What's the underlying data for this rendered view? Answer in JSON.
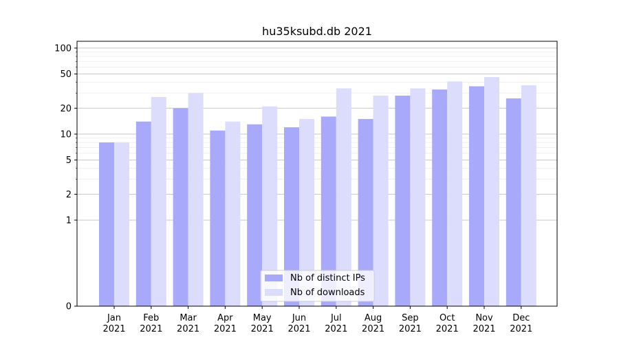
{
  "chart_data": {
    "type": "bar",
    "title": "hu35ksubd.db 2021",
    "xlabel": "",
    "ylabel": "",
    "categories": [
      [
        "Jan",
        "2021"
      ],
      [
        "Feb",
        "2021"
      ],
      [
        "Mar",
        "2021"
      ],
      [
        "Apr",
        "2021"
      ],
      [
        "May",
        "2021"
      ],
      [
        "Jun",
        "2021"
      ],
      [
        "Jul",
        "2021"
      ],
      [
        "Aug",
        "2021"
      ],
      [
        "Sep",
        "2021"
      ],
      [
        "Oct",
        "2021"
      ],
      [
        "Nov",
        "2021"
      ],
      [
        "Dec",
        "2021"
      ]
    ],
    "series": [
      {
        "name": "Nb of distinct IPs",
        "color": "#a9a9fb",
        "values": [
          8,
          14,
          20,
          11,
          13,
          12,
          16,
          15,
          28,
          33,
          36,
          26
        ]
      },
      {
        "name": "Nb of downloads",
        "color": "#dcdcfd",
        "values": [
          8,
          27,
          30,
          14,
          21,
          15,
          34,
          28,
          34,
          41,
          46,
          37
        ]
      }
    ],
    "y_scale": "symlog",
    "ylim": [
      0,
      120
    ],
    "y_ticks": [
      0,
      1,
      2,
      5,
      10,
      20,
      50,
      100
    ],
    "grid": "y",
    "legend_position": "lower-center"
  }
}
